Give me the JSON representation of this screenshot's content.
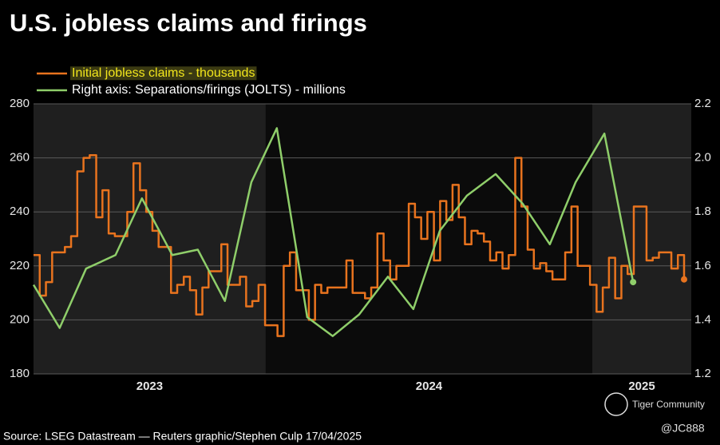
{
  "chart_data": {
    "type": "line",
    "title": "U.S. jobless claims and firings",
    "source": "Source: LSEG Datastream — Reuters graphic/Stephen Culp 17/04/2025",
    "watermark": [
      "Tiger Community",
      "@JC888"
    ],
    "xlim": [
      2023.289,
      2025.303
    ],
    "xticks": [
      {
        "value": 2023,
        "label": "2023"
      },
      {
        "value": 2024,
        "label": "2024"
      },
      {
        "value": 2025,
        "label": "2025"
      }
    ],
    "shade_years": true,
    "ylim": [
      180,
      280
    ],
    "yticks": [
      180,
      200,
      220,
      240,
      260,
      280
    ],
    "y2lim": [
      1.2,
      2.2
    ],
    "y2ticks": [
      1.2,
      1.4,
      1.6,
      {
        "value": 1.8,
        "label": "1.8"
      },
      {
        "value": 2,
        "label": "2.0"
      },
      2.2
    ],
    "grid": true,
    "legend": "top-left",
    "end_markers": true,
    "series": [
      {
        "name": "Initial jobless claims - thousands",
        "color": "#e8731e",
        "drawstyle": "steps-post",
        "x": [
          2023.289,
          2023.308,
          2023.327,
          2023.346,
          2023.366,
          2023.385,
          2023.404,
          2023.423,
          2023.442,
          2023.461,
          2023.481,
          2023.5,
          2023.519,
          2023.538,
          2023.557,
          2023.576,
          2023.595,
          2023.615,
          2023.634,
          2023.653,
          2023.672,
          2023.691,
          2023.71,
          2023.729,
          2023.749,
          2023.768,
          2023.787,
          2023.806,
          2023.825,
          2023.844,
          2023.864,
          2023.883,
          2023.902,
          2023.921,
          2023.94,
          2023.959,
          2023.978,
          2023.998,
          2024.017,
          2024.036,
          2024.055,
          2024.074,
          2024.093,
          2024.112,
          2024.132,
          2024.151,
          2024.17,
          2024.189,
          2024.208,
          2024.227,
          2024.247,
          2024.266,
          2024.285,
          2024.304,
          2024.323,
          2024.342,
          2024.361,
          2024.381,
          2024.4,
          2024.419,
          2024.438,
          2024.457,
          2024.476,
          2024.495,
          2024.515,
          2024.534,
          2024.553,
          2024.572,
          2024.591,
          2024.61,
          2024.63,
          2024.649,
          2024.668,
          2024.687,
          2024.706,
          2024.725,
          2024.744,
          2024.764,
          2024.783,
          2024.802,
          2024.821,
          2024.84,
          2024.859,
          2024.878,
          2024.898,
          2024.917,
          2024.936,
          2024.955,
          2024.974,
          2024.993,
          2025.013,
          2025.032,
          2025.051,
          2025.07,
          2025.089,
          2025.108,
          2025.127,
          2025.147,
          2025.166,
          2025.185,
          2025.204,
          2025.223,
          2025.242,
          2025.262,
          2025.281
        ],
        "values": [
          224,
          209,
          214,
          225,
          225,
          227,
          231,
          255,
          260,
          261,
          238,
          248,
          232,
          231,
          231,
          240,
          258,
          248,
          240,
          233,
          227,
          227,
          210,
          213,
          216,
          211,
          202,
          212,
          218,
          218,
          228,
          213,
          213,
          216,
          205,
          207,
          213,
          198,
          198,
          194,
          220,
          225,
          211,
          211,
          200,
          213,
          210,
          212,
          212,
          212,
          222,
          210,
          210,
          208,
          212,
          232,
          222,
          215,
          220,
          220,
          243,
          238,
          230,
          240,
          222,
          244,
          237,
          250,
          238,
          228,
          233,
          232,
          229,
          222,
          225,
          219,
          224,
          260,
          242,
          226,
          219,
          221,
          218,
          215,
          215,
          225,
          242,
          220,
          220,
          213,
          203,
          212,
          223,
          208,
          220,
          217,
          242,
          242,
          222,
          223,
          225,
          225,
          219,
          224,
          215
        ]
      },
      {
        "name": "Right axis: Separations/firings (JOLTS) - millions",
        "color": "#8fce6a",
        "axis": "y2",
        "x": [
          2023.289,
          2023.369,
          2023.45,
          2023.54,
          2023.621,
          2023.714,
          2023.792,
          2023.875,
          2023.956,
          2024.034,
          2024.127,
          2024.205,
          2024.286,
          2024.374,
          2024.452,
          2024.533,
          2024.616,
          2024.704,
          2024.787,
          2024.87,
          2024.949,
          2025.037,
          2025.125
        ],
        "values": [
          1.53,
          1.37,
          1.59,
          1.64,
          1.85,
          1.64,
          1.66,
          1.47,
          1.91,
          2.11,
          1.41,
          1.34,
          1.42,
          1.56,
          1.44,
          1.73,
          1.86,
          1.94,
          1.83,
          1.68,
          1.91,
          2.09,
          1.54
        ]
      }
    ]
  }
}
